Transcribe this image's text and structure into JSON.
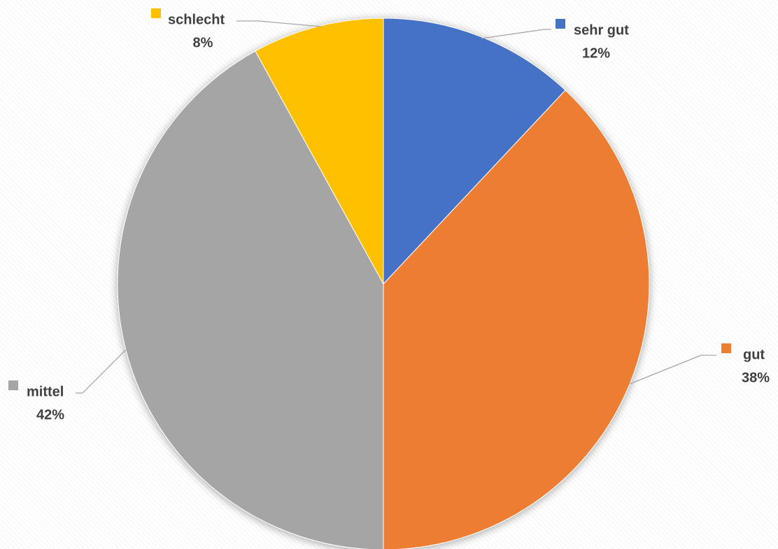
{
  "chart_data": {
    "type": "pie",
    "start_angle": "12 o'clock",
    "direction": "clockwise",
    "slices": [
      {
        "name": "sehr gut",
        "value": 12,
        "label": "12%",
        "color": "#4472C4"
      },
      {
        "name": "gut",
        "value": 38,
        "label": "38%",
        "color": "#ED7D31"
      },
      {
        "name": "mittel",
        "value": 42,
        "label": "42%",
        "color": "#A5A5A5"
      },
      {
        "name": "schlecht",
        "value": 8,
        "label": "8%",
        "color": "#FFC000"
      }
    ],
    "legend": "none",
    "data_labels": "outside with leader lines (category name + percentage)"
  }
}
